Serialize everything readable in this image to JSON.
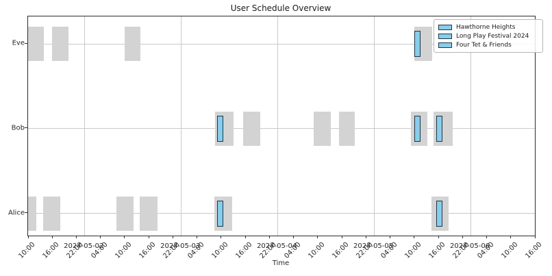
{
  "chart_data": {
    "type": "bar",
    "subtype": "gantt-timeline",
    "title": "User Schedule Overview",
    "xlabel": "Time",
    "ylabel": "",
    "grid": true,
    "legend": {
      "position": "upper-right",
      "items": [
        "Hawthorne Heights",
        "Long Play Festival 2024",
        "Four Tet & Friends"
      ]
    },
    "colors": {
      "availability_fill": "#d3d3d3",
      "event_fill": "#87ceeb",
      "event_edge": "#1e3448",
      "grid": "#c9c9c9",
      "spine": "#2b2b2b",
      "text": "#262626"
    },
    "x_axis": {
      "start": "2024-05-01T10:00",
      "end": "2024-05-06T16:00",
      "tick_interval_hours": 6,
      "tick_label_rotation_deg": 45,
      "tick_label_format": "HH:MM",
      "date_labels": [
        "2024-05-02",
        "2024-05-03",
        "2024-05-04",
        "2024-05-05",
        "2024-05-06"
      ]
    },
    "users_top_to_bottom": [
      "Eve",
      "Bob",
      "Alice"
    ],
    "availability": [
      {
        "user": "Eve",
        "start": "2024-05-01T10:00",
        "end": "2024-05-01T14:00"
      },
      {
        "user": "Eve",
        "start": "2024-05-01T16:00",
        "end": "2024-05-01T20:00"
      },
      {
        "user": "Eve",
        "start": "2024-05-02T10:00",
        "end": "2024-05-02T14:00"
      },
      {
        "user": "Eve",
        "start": "2024-05-05T10:00",
        "end": "2024-05-05T14:30"
      },
      {
        "user": "Bob",
        "start": "2024-05-03T08:30",
        "end": "2024-05-03T13:00"
      },
      {
        "user": "Bob",
        "start": "2024-05-03T15:30",
        "end": "2024-05-03T19:45"
      },
      {
        "user": "Bob",
        "start": "2024-05-04T09:00",
        "end": "2024-05-04T13:15"
      },
      {
        "user": "Bob",
        "start": "2024-05-04T15:15",
        "end": "2024-05-04T19:15"
      },
      {
        "user": "Bob",
        "start": "2024-05-05T09:15",
        "end": "2024-05-05T13:15"
      },
      {
        "user": "Bob",
        "start": "2024-05-05T14:45",
        "end": "2024-05-05T19:30"
      },
      {
        "user": "Alice",
        "start": "2024-05-01T10:00",
        "end": "2024-05-01T12:00"
      },
      {
        "user": "Alice",
        "start": "2024-05-01T13:45",
        "end": "2024-05-01T18:00"
      },
      {
        "user": "Alice",
        "start": "2024-05-02T08:00",
        "end": "2024-05-02T12:15"
      },
      {
        "user": "Alice",
        "start": "2024-05-02T13:45",
        "end": "2024-05-02T18:15"
      },
      {
        "user": "Alice",
        "start": "2024-05-03T08:15",
        "end": "2024-05-03T12:45"
      },
      {
        "user": "Alice",
        "start": "2024-05-05T14:15",
        "end": "2024-05-05T18:30"
      }
    ],
    "events": [
      {
        "name": "Hawthorne Heights",
        "start": "2024-05-03T09:00",
        "end": "2024-05-03T10:30",
        "users": [
          "Bob",
          "Alice"
        ]
      },
      {
        "name": "Long Play Festival 2024",
        "start": "2024-05-05T10:00",
        "end": "2024-05-05T11:30",
        "users": [
          "Eve",
          "Bob"
        ]
      },
      {
        "name": "Four Tet & Friends",
        "start": "2024-05-05T15:30",
        "end": "2024-05-05T17:00",
        "users": [
          "Bob",
          "Alice"
        ]
      }
    ]
  }
}
